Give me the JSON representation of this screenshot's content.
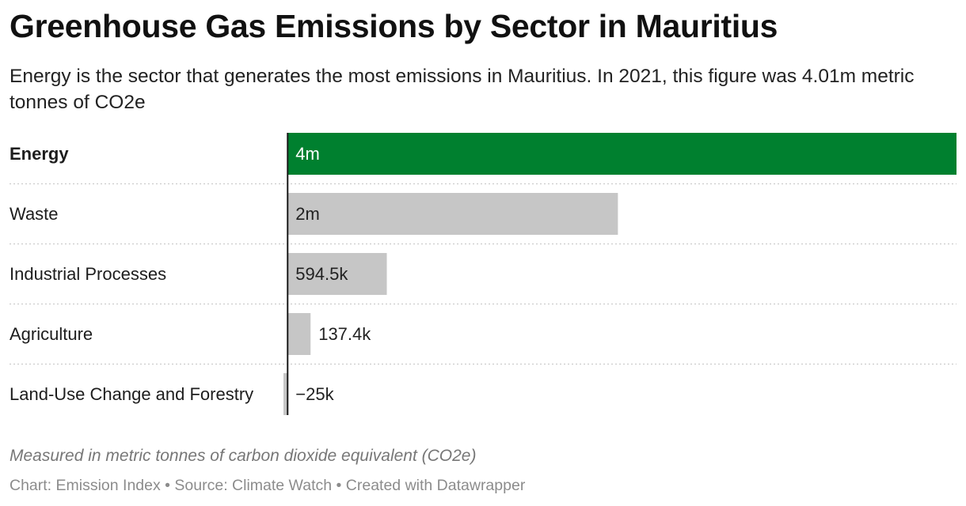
{
  "title": "Greenhouse Gas Emissions by Sector in Mauritius",
  "subtitle": "Energy is the sector that generates the most emissions in Mauritius. In 2021, this figure was 4.01m metric tonnes of CO2e",
  "notes": "Measured in metric tonnes of carbon dioxide equivalent (CO2e)",
  "byline": {
    "chart_label": "Chart: Emission Index",
    "source_label": "Source: Climate Watch",
    "created_label": "Created with Datawrapper",
    "separator": "•"
  },
  "colors": {
    "highlight": "#00802f",
    "default_bar": "#c6c6c6",
    "axis": "#1a1a1a",
    "divider": "#cccccc",
    "label_on_highlight": "#ffffff",
    "label_default": "#222222"
  },
  "chart_data": {
    "type": "bar",
    "orientation": "horizontal",
    "categories": [
      "Energy",
      "Waste",
      "Industrial Processes",
      "Agriculture",
      "Land-Use Change and Forestry"
    ],
    "values": [
      4010000,
      1980000,
      594500,
      137400,
      -25000
    ],
    "value_labels": [
      "4m",
      "2m",
      "594.5k",
      "137.4k",
      "−25k"
    ],
    "highlighted": [
      "Energy"
    ],
    "xlim": [
      -25000,
      4010000
    ],
    "grid": false,
    "legend": "none"
  }
}
